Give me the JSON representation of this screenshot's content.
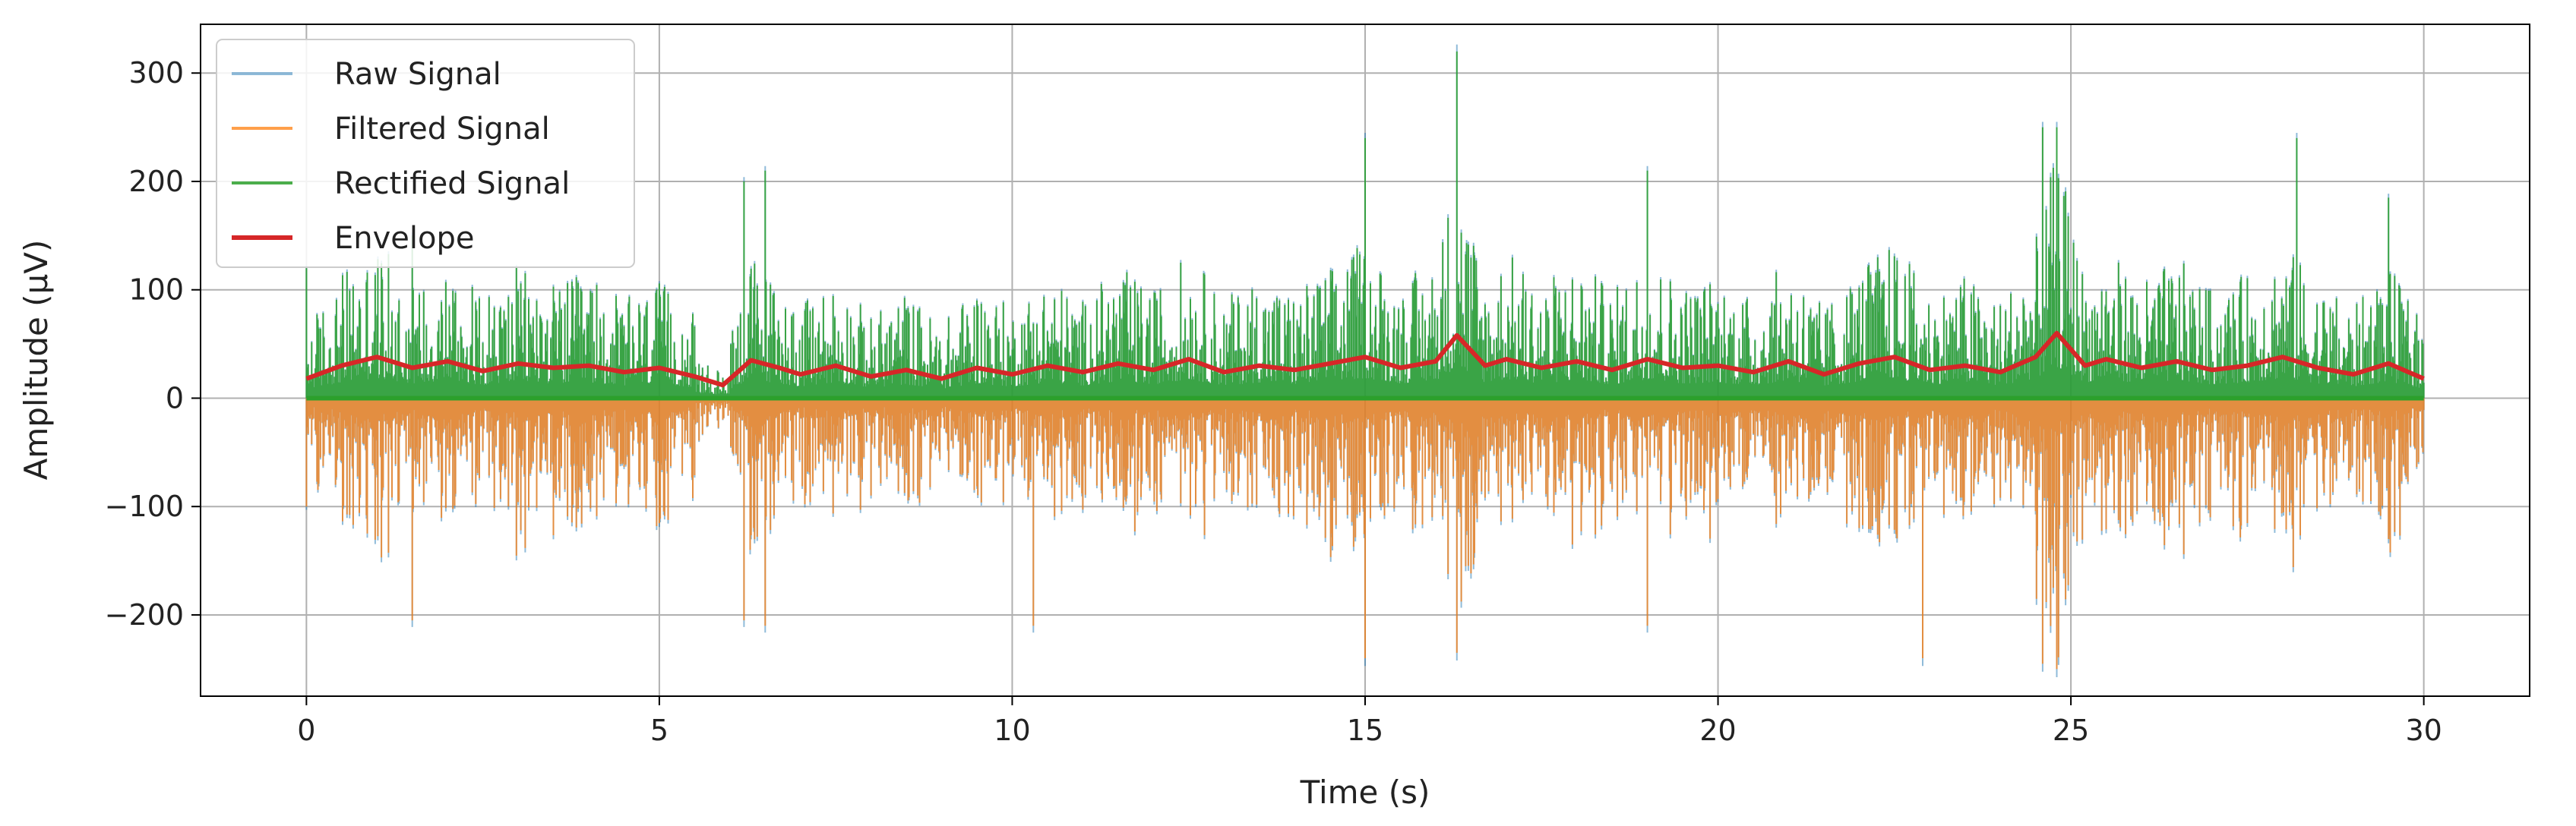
{
  "chart_data": {
    "type": "line",
    "xlabel": "Time (s)",
    "ylabel": "Amplitude (μV)",
    "xlim": [
      -1.5,
      31.5
    ],
    "ylim": [
      -275,
      345
    ],
    "xticks": [
      0,
      5,
      10,
      15,
      20,
      25,
      30
    ],
    "xtick_labels": [
      "0",
      "5",
      "10",
      "15",
      "20",
      "25",
      "30"
    ],
    "yticks": [
      -200,
      -100,
      0,
      100,
      200,
      300
    ],
    "ytick_labels": [
      "−200",
      "−100",
      "0",
      "100",
      "200",
      "300"
    ],
    "grid": true,
    "legend_position": "top-left",
    "series": [
      {
        "name": "Raw Signal",
        "color": "#1f77b4",
        "style": "bipolar signal, mostly hidden behind filtered signal",
        "x": [
          0,
          1.5,
          6.2,
          6.5,
          15,
          16.3,
          19,
          24.6,
          24.8,
          29.5
        ],
        "peaks": [
          120,
          150,
          200,
          210,
          240,
          320,
          210,
          250,
          250,
          185
        ],
        "troughs": [
          -100,
          -205,
          -205,
          -210,
          -240,
          -190,
          -215,
          -245,
          -255,
          -130
        ]
      },
      {
        "name": "Filtered Signal",
        "color": "#ff7f0e",
        "style": "bipolar signal, visible below zero",
        "x": [
          0,
          1.5,
          6.2,
          6.5,
          10.3,
          15,
          16.3,
          19,
          22.9,
          24.6,
          24.8,
          29.5
        ],
        "troughs": [
          -100,
          -205,
          -205,
          -210,
          -210,
          -240,
          -235,
          -210,
          -240,
          -245,
          -250,
          -130
        ]
      },
      {
        "name": "Rectified Signal",
        "color": "#2ca02c",
        "style": "absolute value, above zero",
        "x": [
          0,
          1.5,
          6.2,
          6.5,
          15,
          16.3,
          19,
          24.6,
          24.8,
          28.2,
          29.5
        ],
        "peaks": [
          120,
          150,
          200,
          210,
          240,
          320,
          210,
          250,
          250,
          240,
          185
        ]
      },
      {
        "name": "Envelope",
        "color": "#d62728",
        "x": [
          0,
          0.5,
          1,
          1.5,
          2,
          2.5,
          3,
          3.5,
          4,
          4.5,
          5,
          5.5,
          5.9,
          6.3,
          6.7,
          7,
          7.5,
          8,
          8.5,
          9,
          9.5,
          10,
          10.5,
          11,
          11.5,
          12,
          12.5,
          13,
          13.5,
          14,
          14.5,
          15,
          15.5,
          16,
          16.3,
          16.7,
          17,
          17.5,
          18,
          18.5,
          19,
          19.5,
          20,
          20.5,
          21,
          21.5,
          22,
          22.5,
          23,
          23.5,
          24,
          24.5,
          24.8,
          25.2,
          25.5,
          26,
          26.5,
          27,
          27.5,
          28,
          28.5,
          29,
          29.5,
          30
        ],
        "values": [
          18,
          30,
          38,
          28,
          34,
          25,
          32,
          28,
          30,
          24,
          28,
          20,
          12,
          35,
          28,
          22,
          30,
          20,
          26,
          18,
          28,
          22,
          30,
          24,
          32,
          26,
          36,
          24,
          30,
          26,
          32,
          38,
          28,
          34,
          58,
          30,
          36,
          28,
          34,
          26,
          36,
          28,
          30,
          24,
          34,
          22,
          32,
          38,
          26,
          30,
          24,
          38,
          60,
          30,
          36,
          28,
          34,
          26,
          30,
          38,
          28,
          22,
          32,
          18
        ]
      }
    ]
  }
}
